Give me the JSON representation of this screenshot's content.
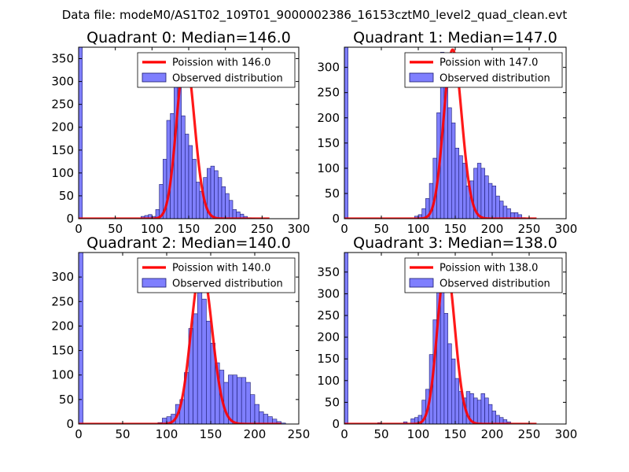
{
  "figure": {
    "suptitle": "Data file: modeM0/AS1T02_109T01_9000002386_16153cztM0_level2_quad_clean.evt"
  },
  "colors": {
    "poisson_line": "#ff0000",
    "observed_bar_fill": "#7f7ffe",
    "observed_bar_edge": "#1a1a6e",
    "axis": "#000000"
  },
  "chart_data": [
    {
      "type": "bar",
      "title": "Quadrant 0: Median=146.0",
      "median": 146.0,
      "xlim": [
        0,
        300
      ],
      "ylim": [
        0,
        375
      ],
      "xticks": [
        0,
        50,
        100,
        150,
        200,
        250,
        300
      ],
      "yticks": [
        0,
        50,
        100,
        150,
        200,
        250,
        300,
        350
      ],
      "legend": {
        "location": "upper right",
        "entries": [
          "Poission with 146.0",
          "Observed distribution"
        ]
      },
      "histogram": {
        "bin_width": 5,
        "bin_starts": [
          0,
          85,
          90,
          95,
          100,
          105,
          110,
          115,
          120,
          125,
          130,
          135,
          140,
          145,
          150,
          155,
          160,
          165,
          170,
          175,
          180,
          185,
          190,
          195,
          200,
          205,
          210,
          215,
          220,
          225,
          230,
          235
        ],
        "counts": [
          375,
          5,
          7,
          9,
          5,
          20,
          75,
          130,
          215,
          230,
          355,
          310,
          225,
          185,
          160,
          130,
          80,
          60,
          90,
          110,
          115,
          105,
          90,
          70,
          55,
          40,
          20,
          15,
          10,
          5,
          2,
          1
        ]
      },
      "poisson": {
        "mean": 146.0,
        "peak": 355,
        "x_range": [
          0,
          260
        ]
      }
    },
    {
      "type": "bar",
      "title": "Quadrant 1: Median=147.0",
      "median": 147.0,
      "xlim": [
        0,
        300
      ],
      "ylim": [
        0,
        340
      ],
      "xticks": [
        0,
        50,
        100,
        150,
        200,
        250,
        300
      ],
      "yticks": [
        0,
        50,
        100,
        150,
        200,
        250,
        300
      ],
      "legend": {
        "location": "upper right",
        "entries": [
          "Poission with 147.0",
          "Observed distribution"
        ]
      },
      "histogram": {
        "bin_width": 5,
        "bin_starts": [
          0,
          95,
          100,
          105,
          110,
          115,
          120,
          125,
          130,
          135,
          140,
          145,
          150,
          155,
          160,
          165,
          170,
          175,
          180,
          185,
          190,
          195,
          200,
          205,
          210,
          215,
          220,
          225,
          230,
          235,
          240
        ],
        "counts": [
          340,
          5,
          8,
          20,
          40,
          70,
          120,
          210,
          330,
          300,
          220,
          190,
          140,
          125,
          110,
          65,
          75,
          100,
          110,
          100,
          85,
          70,
          65,
          45,
          35,
          25,
          20,
          12,
          12,
          8,
          2
        ]
      },
      "poisson": {
        "mean": 147.0,
        "peak": 335,
        "x_range": [
          0,
          260
        ]
      }
    },
    {
      "type": "bar",
      "title": "Quadrant 2: Median=140.0",
      "median": 140.0,
      "xlim": [
        0,
        250
      ],
      "ylim": [
        0,
        350
      ],
      "xticks": [
        0,
        50,
        100,
        150,
        200,
        250
      ],
      "yticks": [
        0,
        50,
        100,
        150,
        200,
        250,
        300
      ],
      "legend": {
        "location": "upper right",
        "entries": [
          "Poission with 140.0",
          "Observed distribution"
        ]
      },
      "histogram": {
        "bin_width": 5,
        "bin_starts": [
          0,
          90,
          95,
          100,
          105,
          110,
          115,
          120,
          125,
          130,
          135,
          140,
          145,
          150,
          155,
          160,
          165,
          170,
          175,
          180,
          185,
          190,
          195,
          200,
          205,
          210,
          215,
          220,
          225,
          230
        ],
        "counts": [
          350,
          3,
          12,
          15,
          20,
          40,
          50,
          105,
          195,
          225,
          330,
          255,
          210,
          165,
          125,
          110,
          85,
          100,
          100,
          95,
          95,
          85,
          60,
          40,
          25,
          20,
          15,
          10,
          5,
          2
        ]
      },
      "poisson": {
        "mean": 140.0,
        "peak": 322,
        "x_range": [
          0,
          230
        ]
      }
    },
    {
      "type": "bar",
      "title": "Quadrant 3: Median=138.0",
      "median": 138.0,
      "xlim": [
        0,
        300
      ],
      "ylim": [
        0,
        395
      ],
      "xticks": [
        0,
        50,
        100,
        150,
        200,
        250,
        300
      ],
      "yticks": [
        0,
        50,
        100,
        150,
        200,
        250,
        300,
        350
      ],
      "legend": {
        "location": "upper right",
        "entries": [
          "Poission with 138.0",
          "Observed distribution"
        ]
      },
      "histogram": {
        "bin_width": 5,
        "bin_starts": [
          0,
          45,
          80,
          90,
          95,
          100,
          105,
          110,
          115,
          120,
          125,
          130,
          135,
          140,
          145,
          150,
          155,
          160,
          165,
          170,
          175,
          180,
          185,
          190,
          195,
          200,
          205,
          210,
          215,
          220
        ],
        "counts": [
          395,
          3,
          5,
          12,
          15,
          20,
          55,
          80,
          160,
          240,
          330,
          365,
          255,
          185,
          150,
          105,
          75,
          60,
          75,
          70,
          60,
          55,
          70,
          60,
          45,
          30,
          20,
          15,
          10,
          5
        ]
      },
      "poisson": {
        "mean": 138.0,
        "peak": 370,
        "x_range": [
          0,
          260
        ]
      }
    }
  ]
}
